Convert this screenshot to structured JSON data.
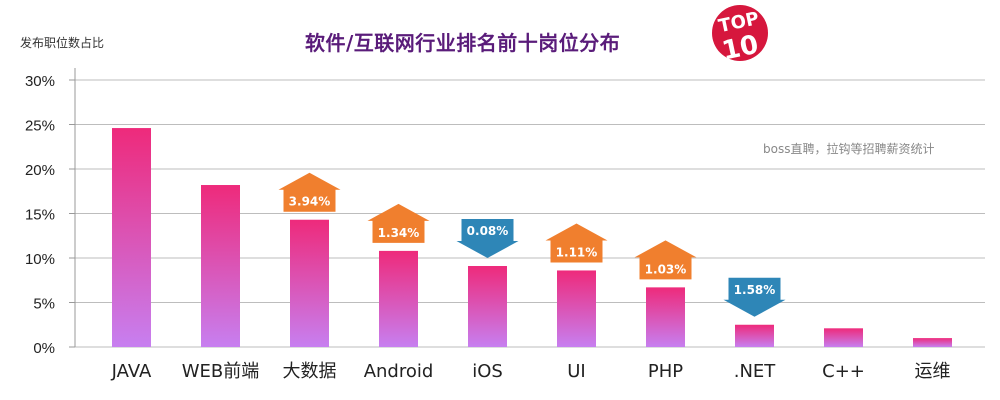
{
  "header": {
    "y_unit_label": "发布职位数占比",
    "title": "软件/互联网行业排名前十岗位分布",
    "logo_text_top": "TOP",
    "logo_text_bottom": "10",
    "source_note": "boss直聘，拉钩等招聘薪资统计"
  },
  "colors": {
    "bar_top": "#ee2a7b",
    "bar_bottom": "#c77ff0",
    "up_arrow": "#f07f2e",
    "down_arrow": "#2e86b7",
    "logo": "#d6173d",
    "title": "#5a1c7a"
  },
  "chart_data": {
    "type": "bar",
    "title": "软件/互联网行业排名前十岗位分布",
    "ylabel": "发布职位数占比",
    "xlabel": "",
    "ylim": [
      0,
      30
    ],
    "y_ticks": [
      "0%",
      "5%",
      "10%",
      "15%",
      "20%",
      "25%",
      "30%"
    ],
    "y_tick_values": [
      0,
      5,
      10,
      15,
      20,
      25,
      30
    ],
    "grid": true,
    "categories": [
      "JAVA",
      "WEB前端",
      "大数据",
      "Android",
      "iOS",
      "UI",
      "PHP",
      ".NET",
      "C++",
      "运维"
    ],
    "values": [
      24.6,
      18.2,
      14.3,
      10.8,
      9.1,
      8.6,
      6.7,
      2.5,
      2.1,
      1.0
    ],
    "annotations": [
      {
        "category": "大数据",
        "text": "3.94%",
        "direction": "up"
      },
      {
        "category": "Android",
        "text": "1.34%",
        "direction": "up"
      },
      {
        "category": "iOS",
        "text": "0.08%",
        "direction": "down"
      },
      {
        "category": "UI",
        "text": "1.11%",
        "direction": "up"
      },
      {
        "category": "PHP",
        "text": "1.03%",
        "direction": "up"
      },
      {
        "category": ".NET",
        "text": "1.58%",
        "direction": "down"
      }
    ]
  }
}
